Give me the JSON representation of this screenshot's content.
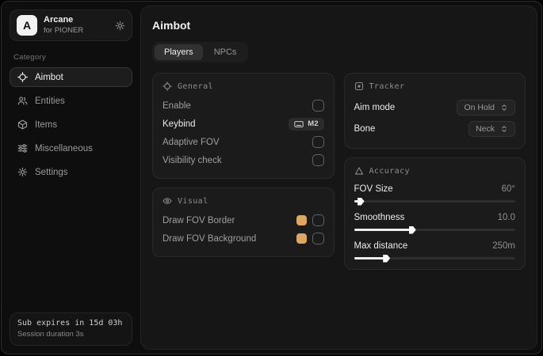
{
  "sidebar": {
    "brand": {
      "logo_letter": "A",
      "name": "Arcane",
      "subtitle": "for PIONER",
      "settings_icon": "gear-icon"
    },
    "category_label": "Category",
    "items": [
      {
        "label": "Aimbot",
        "icon": "crosshair-icon",
        "selected": true
      },
      {
        "label": "Entities",
        "icon": "people-icon",
        "selected": false
      },
      {
        "label": "Items",
        "icon": "cube-icon",
        "selected": false
      },
      {
        "label": "Miscellaneous",
        "icon": "sliders-icon",
        "selected": false
      },
      {
        "label": "Settings",
        "icon": "gear-icon",
        "selected": false
      }
    ],
    "subscription": {
      "expires": "Sub expires in 15d 03h",
      "session": "Session duration 3s"
    }
  },
  "main": {
    "title": "Aimbot",
    "tabs": [
      {
        "label": "Players",
        "selected": true
      },
      {
        "label": "NPCs",
        "selected": false
      }
    ],
    "cards": {
      "general": {
        "title": "General",
        "icon": "crosshair-icon",
        "rows": [
          {
            "label": "Enable",
            "control": "checkbox",
            "checked": false
          },
          {
            "label": "Keybind",
            "control": "keybind",
            "value": "M2",
            "icon": "keyboard-icon"
          },
          {
            "label": "Adaptive FOV",
            "control": "checkbox",
            "checked": false
          },
          {
            "label": "Visibility check",
            "control": "checkbox",
            "checked": false
          }
        ]
      },
      "visual": {
        "title": "Visual",
        "icon": "eye-icon",
        "rows": [
          {
            "label": "Draw FOV Border",
            "control": "color-checkbox",
            "color": "#dda761",
            "checked": false
          },
          {
            "label": "Draw FOV Background",
            "control": "color-checkbox",
            "color": "#dda761",
            "checked": false
          }
        ]
      },
      "tracker": {
        "title": "Tracker",
        "icon": "scan-icon",
        "rows": [
          {
            "label": "Aim mode",
            "control": "select",
            "value": "On Hold"
          },
          {
            "label": "Bone",
            "control": "select",
            "value": "Neck"
          }
        ]
      },
      "accuracy": {
        "title": "Accuracy",
        "icon": "triangle-icon",
        "sliders": [
          {
            "label": "FOV Size",
            "value": "60°",
            "percent": 4
          },
          {
            "label": "Smoothness",
            "value": "10.0",
            "percent": 36
          },
          {
            "label": "Max distance",
            "value": "250m",
            "percent": 20
          }
        ]
      }
    }
  },
  "colors": {
    "accent_swatch": "#dda761",
    "slider_fill": "#ededed"
  }
}
